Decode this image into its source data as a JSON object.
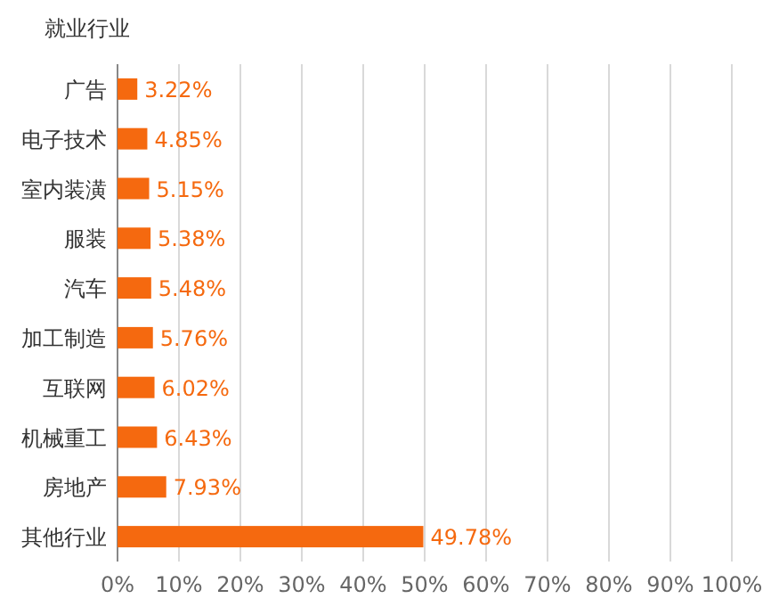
{
  "chart_data": {
    "type": "bar",
    "orientation": "horizontal",
    "title": "就业行业",
    "categories": [
      "广告",
      "电子技术",
      "室内装潢",
      "服装",
      "汽车",
      "加工制造",
      "互联网",
      "机械重工",
      "房地产",
      "其他行业"
    ],
    "values": [
      3.22,
      4.85,
      5.15,
      5.38,
      5.48,
      5.76,
      6.02,
      6.43,
      7.93,
      49.78
    ],
    "value_labels": [
      "3.22%",
      "4.85%",
      "5.15%",
      "5.38%",
      "5.48%",
      "5.76%",
      "6.02%",
      "6.43%",
      "7.93%",
      "49.78%"
    ],
    "color": "#f5690f",
    "xlim": [
      0,
      100
    ],
    "xticks": [
      {
        "value": 0,
        "label": "0%"
      },
      {
        "value": 10,
        "label": "10%"
      },
      {
        "value": 20,
        "label": "20%"
      },
      {
        "value": 30,
        "label": "30%"
      },
      {
        "value": 40,
        "label": "40%"
      },
      {
        "value": 50,
        "label": "50%"
      },
      {
        "value": 60,
        "label": "60%"
      },
      {
        "value": 70,
        "label": "70%"
      },
      {
        "value": 80,
        "label": "80%"
      },
      {
        "value": 90,
        "label": "90%"
      },
      {
        "value": 100,
        "label": "100%"
      }
    ],
    "grid": "x"
  }
}
